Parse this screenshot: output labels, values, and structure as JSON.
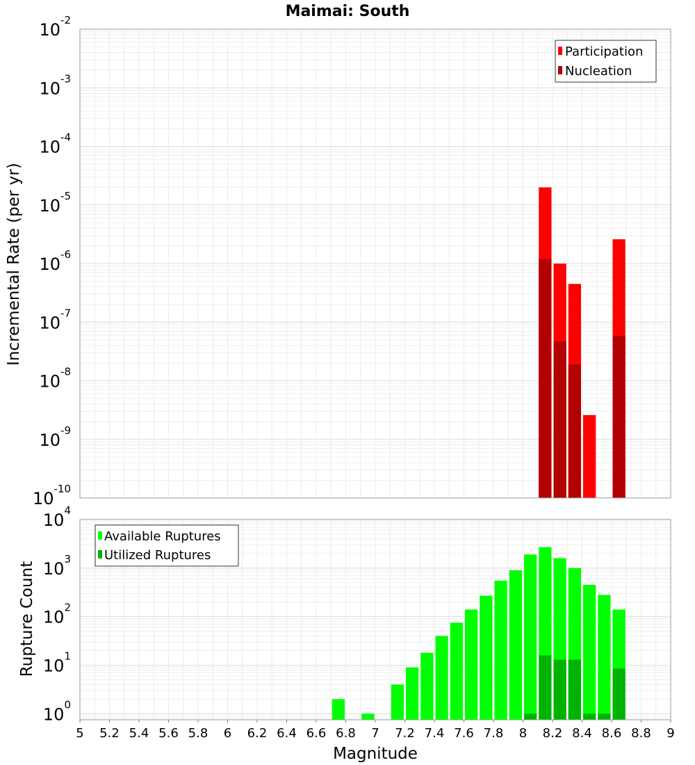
{
  "chart_data": [
    {
      "type": "bar",
      "title": "Maimai: South",
      "xlabel": "",
      "ylabel": "Incremental Rate (per yr)",
      "yscale": "log",
      "xlim": [
        5,
        9
      ],
      "ylim": [
        1e-10,
        0.01
      ],
      "grid": true,
      "legend_position": "top-right",
      "y_ticks": [
        {
          "base": "10",
          "exp": "-10"
        },
        {
          "base": "10",
          "exp": "-9"
        },
        {
          "base": "10",
          "exp": "-8"
        },
        {
          "base": "10",
          "exp": "-7"
        },
        {
          "base": "10",
          "exp": "-6"
        },
        {
          "base": "10",
          "exp": "-5"
        },
        {
          "base": "10",
          "exp": "-4"
        },
        {
          "base": "10",
          "exp": "-3"
        },
        {
          "base": "10",
          "exp": "-2"
        }
      ],
      "series": [
        {
          "name": "Participation",
          "color": "#ff0000",
          "x": [
            8.15,
            8.25,
            8.35,
            8.45,
            8.65
          ],
          "values": [
            2e-05,
            1e-06,
            4.5e-07,
            2.6e-09,
            2.6e-06
          ]
        },
        {
          "name": "Nucleation",
          "color": "#b30000",
          "x": [
            8.15,
            8.25,
            8.35,
            8.65
          ],
          "values": [
            1.2e-06,
            4.7e-08,
            1.9e-08,
            5.8e-08
          ]
        }
      ]
    },
    {
      "type": "bar",
      "title": "",
      "xlabel": "Magnitude",
      "ylabel": "Rupture Count",
      "yscale": "log",
      "xlim": [
        5,
        9
      ],
      "ylim": [
        0.75,
        10000
      ],
      "grid": true,
      "legend_position": "top-left",
      "x_ticks": [
        "5",
        "5.2",
        "5.4",
        "5.6",
        "5.8",
        "6",
        "6.2",
        "6.4",
        "6.6",
        "6.8",
        "7",
        "7.2",
        "7.4",
        "7.6",
        "7.8",
        "8",
        "8.2",
        "8.4",
        "8.6",
        "8.8",
        "9"
      ],
      "y_ticks": [
        {
          "base": "10",
          "exp": "0"
        },
        {
          "base": "10",
          "exp": "1"
        },
        {
          "base": "10",
          "exp": "2"
        },
        {
          "base": "10",
          "exp": "3"
        },
        {
          "base": "10",
          "exp": "4"
        }
      ],
      "series": [
        {
          "name": "Available Ruptures",
          "color": "#00ff00",
          "x": [
            6.75,
            6.95,
            7.15,
            7.25,
            7.35,
            7.45,
            7.55,
            7.65,
            7.75,
            7.85,
            7.95,
            8.05,
            8.15,
            8.25,
            8.35,
            8.45,
            8.55,
            8.65
          ],
          "values": [
            2,
            1,
            4,
            9,
            18,
            40,
            75,
            140,
            270,
            550,
            900,
            1900,
            2700,
            1600,
            1000,
            450,
            280,
            140
          ]
        },
        {
          "name": "Utilized Ruptures",
          "color": "#00b300",
          "x": [
            8.05,
            8.15,
            8.25,
            8.35,
            8.45,
            8.55,
            8.65
          ],
          "values": [
            1,
            16,
            13,
            13,
            1,
            1,
            8.5
          ]
        }
      ]
    }
  ]
}
